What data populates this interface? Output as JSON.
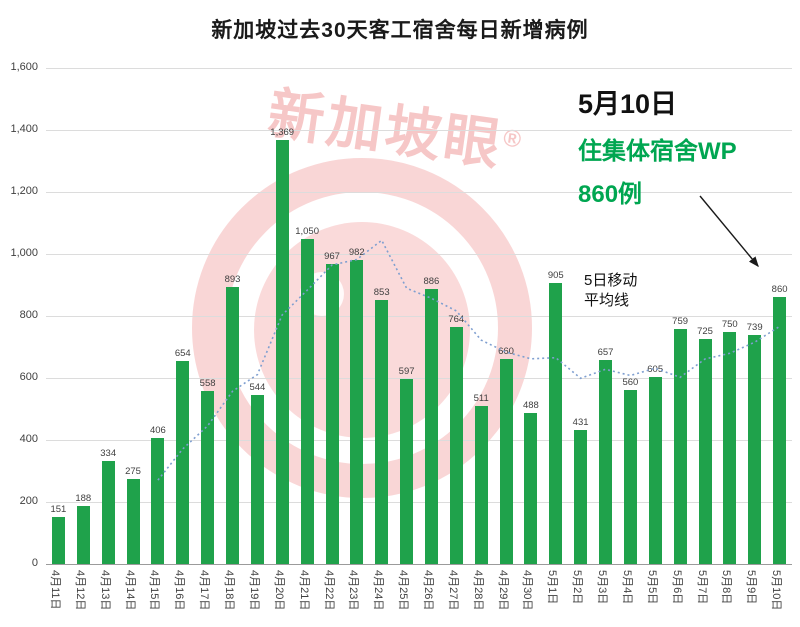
{
  "title": "新加坡过去30天客工宿舍每日新增病例",
  "watermark": {
    "text": "新加坡眼",
    "reg": "®"
  },
  "annotation": {
    "date": "5月10日",
    "line1": "住集体宿舍WP",
    "line2": "860例"
  },
  "ma_label": {
    "line1": "5日移动",
    "line2": "平均线"
  },
  "colors": {
    "annotation_green": "#00a651",
    "watermark_red": "#e65555",
    "gridline": "#dcdcdc",
    "axis_line": "#9b9b9b"
  },
  "chart_data": {
    "type": "bar",
    "title": "新加坡过去30天客工宿舍每日新增病例",
    "xlabel": "",
    "ylabel": "",
    "ylim": [
      0,
      1600
    ],
    "grid": true,
    "legend": false,
    "bar_color": "#1fa24b",
    "ma_color": "#7f9fd0",
    "ma_window": 5,
    "ma_label": "5日移动平均线",
    "y_ticks": [
      "1,600",
      "1,400",
      "1,200",
      "1,000",
      "800",
      "600",
      "400",
      "200",
      "0"
    ],
    "categories": [
      "4月11日",
      "4月12日",
      "4月13日",
      "4月14日",
      "4月15日",
      "4月16日",
      "4月17日",
      "4月18日",
      "4月19日",
      "4月20日",
      "4月21日",
      "4月22日",
      "4月23日",
      "4月24日",
      "4月25日",
      "4月26日",
      "4月27日",
      "4月28日",
      "4月29日",
      "4月30日",
      "5月1日",
      "5月2日",
      "5月3日",
      "5月4日",
      "5月5日",
      "5月6日",
      "5月7日",
      "5月8日",
      "5月9日",
      "5月10日"
    ],
    "values": [
      151,
      188,
      334,
      275,
      406,
      654,
      558,
      893,
      544,
      1369,
      1050,
      967,
      982,
      853,
      597,
      886,
      764,
      511,
      660,
      488,
      905,
      431,
      657,
      560,
      605,
      759,
      725,
      750,
      739,
      860
    ],
    "labels": [
      "151",
      "188",
      "334",
      "275",
      "406",
      "654",
      "558",
      "893",
      "544",
      "1,369",
      "1,050",
      "967",
      "982",
      "853",
      "597",
      "886",
      "764",
      "511",
      "660",
      "488",
      "905",
      "431",
      "657",
      "560",
      "605",
      "759",
      "725",
      "750",
      "739",
      "860"
    ],
    "moving_average": [
      null,
      null,
      null,
      null,
      270.8,
      371.4,
      445.4,
      557.2,
      611,
      803.6,
      882.8,
      964.6,
      982.4,
      1044.2,
      889.8,
      857,
      816.4,
      722.2,
      683.6,
      661.8,
      665.6,
      599,
      628.2,
      608.2,
      631.6,
      602.4,
      661.2,
      679.8,
      715.6,
      766.6
    ]
  }
}
